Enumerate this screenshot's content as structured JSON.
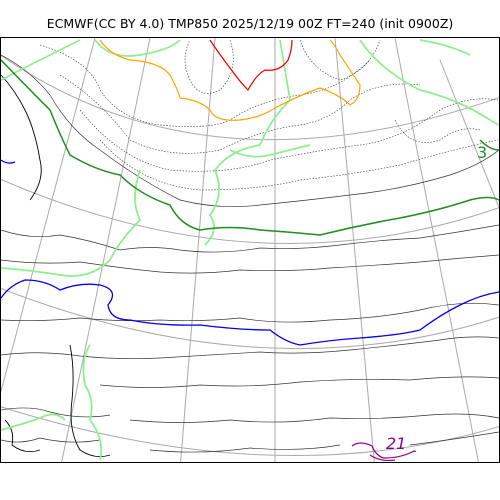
{
  "title": "ECMWF(CC BY 4.0) TMP850 2025/12/19 00Z FT=240 (init 0900Z)",
  "contour_labels": {
    "temp_3": "3",
    "temp_21": "21"
  },
  "colors": {
    "coastline": "#000000",
    "graticule": "#aaaaaa",
    "isotherm_thin": "#333333",
    "isotherm_green": "#228b22",
    "isotherm_lightgreen": "#90ee90",
    "isotherm_blue": "#0000ee",
    "isotherm_orange": "#ffa500",
    "isotherm_red": "#ee0000",
    "isotherm_purple": "#8b008b"
  }
}
